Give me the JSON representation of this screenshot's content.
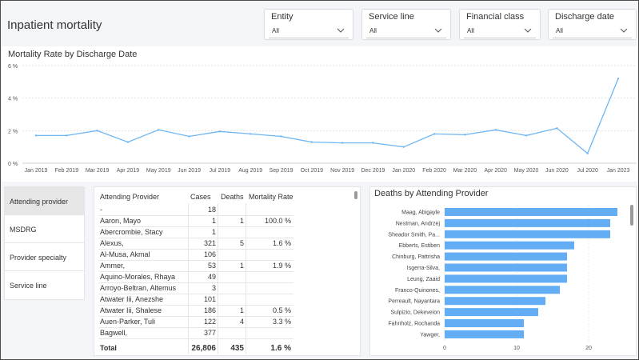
{
  "page": {
    "title": "Inpatient mortality"
  },
  "filters": [
    {
      "label": "Entity",
      "value": "All"
    },
    {
      "label": "Service line",
      "value": "All"
    },
    {
      "label": "Financial class",
      "value": "All"
    },
    {
      "label": "Discharge date",
      "value": "All"
    }
  ],
  "nav": {
    "items": [
      {
        "label": "Attending provider",
        "active": true
      },
      {
        "label": "MSDRG",
        "active": false
      },
      {
        "label": "Provider specialty",
        "active": false
      },
      {
        "label": "Service line",
        "active": false
      }
    ]
  },
  "table": {
    "headers": [
      "Attending Provider",
      "Cases",
      "Deaths",
      "Mortality Rate"
    ],
    "rows": [
      [
        "-",
        "18",
        "",
        ""
      ],
      [
        "Aaron, Mayo",
        "1",
        "1",
        "100.0 %"
      ],
      [
        "Abercrombie, Stacy",
        "1",
        "",
        ""
      ],
      [
        "Alexus,",
        "321",
        "5",
        "1.6 %"
      ],
      [
        "Al-Musa, Akmal",
        "106",
        "",
        ""
      ],
      [
        "Ammer,",
        "53",
        "1",
        "1.9 %"
      ],
      [
        "Aquino-Morales, Rhaya",
        "49",
        "",
        ""
      ],
      [
        "Arroyo-Beltran, Altemus",
        "3",
        "",
        ""
      ],
      [
        "Atwater Iii, Anezshe",
        "101",
        "",
        ""
      ],
      [
        "Atwater Iii, Shalese",
        "186",
        "1",
        "0.5 %"
      ],
      [
        "Auen-Parker, Tuli",
        "122",
        "4",
        "3.3 %"
      ],
      [
        "Bagwell,",
        "377",
        "",
        ""
      ]
    ],
    "total": {
      "label": "Total",
      "cases": "26,806",
      "deaths": "435",
      "rate": "1.6 %"
    }
  },
  "chart_data": [
    {
      "type": "line",
      "title": "Mortality Rate by Discharge Date",
      "xlabel": "",
      "ylabel": "",
      "x": [
        "Jan 2019",
        "Feb 2019",
        "Mar 2019",
        "Apr 2019",
        "May 2019",
        "Jun 2019",
        "Jul 2019",
        "Aug 2019",
        "Sep 2019",
        "Oct 2019",
        "Nov 2019",
        "Dec 2019",
        "Jan 2020",
        "Feb 2020",
        "Mar 2020",
        "Apr 2020",
        "May 2020",
        "Jun 2020",
        "Jul 2020",
        "Jan 2023"
      ],
      "series": [
        {
          "values": [
            1.7,
            1.7,
            2.0,
            1.3,
            2.05,
            1.65,
            1.95,
            1.8,
            1.65,
            1.3,
            1.25,
            1.25,
            1.0,
            1.8,
            1.75,
            2.05,
            1.7,
            2.15,
            0.6,
            5.2
          ]
        }
      ],
      "yticks": [
        "0 %",
        "2 %",
        "4 %",
        "6 %"
      ],
      "ylim": [
        0,
        6
      ],
      "grid": true,
      "color": "#6fb6f2"
    },
    {
      "type": "bar",
      "orientation": "horizontal",
      "title": "Deaths by Attending Provider",
      "categories": [
        "Maag, Abigayle",
        "Nestman, Andrzej",
        "Sheador Smith, Pa...",
        "Ebberts, Estiben",
        "Chinburg, Pattrisha",
        "Isgerra-Silva,",
        "Leung, Zaaid",
        "Franco-Quinones,",
        "Perreault, Nayantara",
        "Sulpizio, Dekeveion",
        "Fahnholz, Rochanda",
        "Yawger,"
      ],
      "values": [
        24,
        23,
        23,
        18,
        17,
        17,
        17,
        16,
        14,
        13,
        11,
        11
      ],
      "xticks": [
        0,
        10,
        20
      ],
      "xlim": [
        0,
        26
      ],
      "color": "#62adf3"
    }
  ]
}
